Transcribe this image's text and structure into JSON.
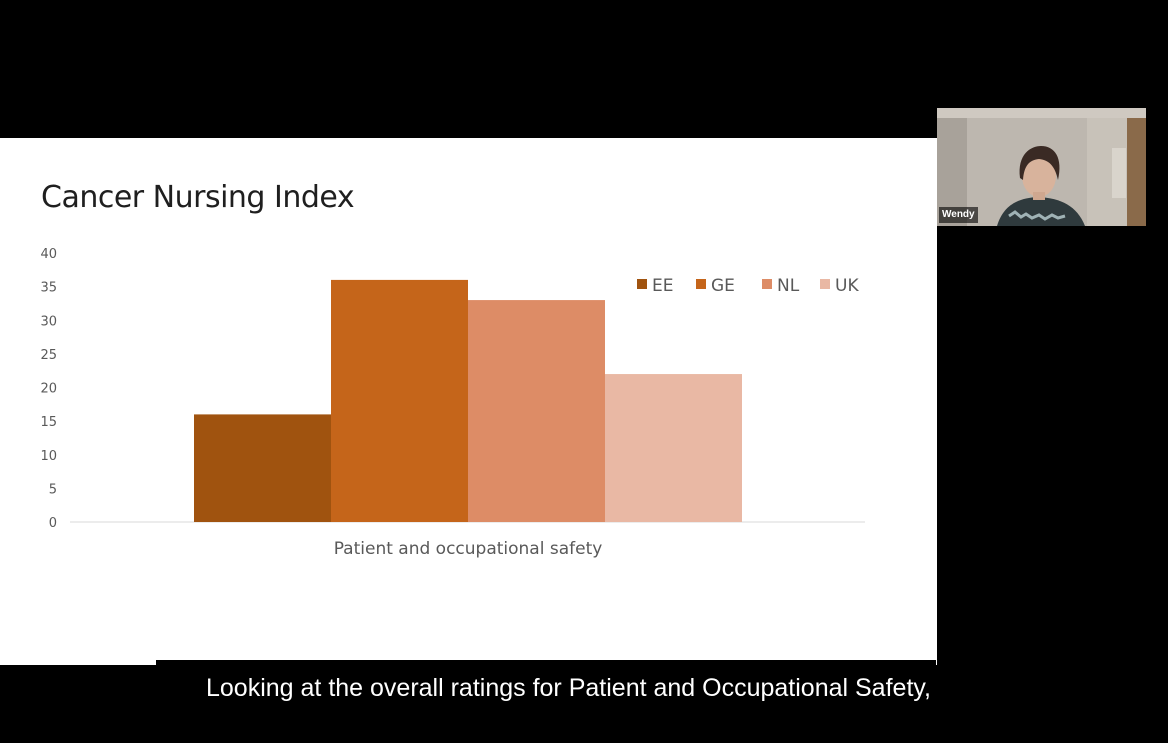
{
  "slide": {
    "title": "Cancer Nursing Index"
  },
  "chart_data": {
    "type": "bar",
    "title": "Cancer Nursing Index",
    "categories": [
      "Patient and occupational safety"
    ],
    "series": [
      {
        "name": "EE",
        "values": [
          16
        ],
        "color": "#a0530f"
      },
      {
        "name": "GE",
        "values": [
          36
        ],
        "color": "#c5651a"
      },
      {
        "name": "NL",
        "values": [
          33
        ],
        "color": "#dd8c66"
      },
      {
        "name": "UK",
        "values": [
          22
        ],
        "color": "#e9b8a4"
      }
    ],
    "yticks": [
      0,
      5,
      10,
      15,
      20,
      25,
      30,
      35,
      40
    ],
    "ylim": [
      0,
      40
    ],
    "xlabel": "",
    "ylabel": "",
    "legend": "top-right",
    "grid": false
  },
  "participant": {
    "name": "Wendy"
  },
  "captions": {
    "text": "Looking at the overall ratings for Patient and Occupational Safety,"
  }
}
